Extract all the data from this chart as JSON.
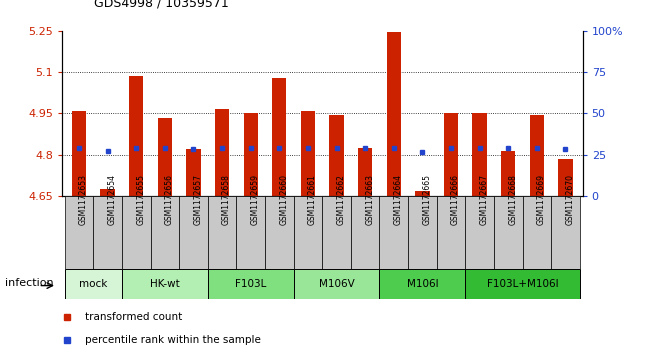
{
  "title": "GDS4998 / 10359571",
  "samples": [
    "GSM1172653",
    "GSM1172654",
    "GSM1172655",
    "GSM1172656",
    "GSM1172657",
    "GSM1172658",
    "GSM1172659",
    "GSM1172660",
    "GSM1172661",
    "GSM1172662",
    "GSM1172663",
    "GSM1172664",
    "GSM1172665",
    "GSM1172666",
    "GSM1172667",
    "GSM1172668",
    "GSM1172669",
    "GSM1172670"
  ],
  "red_values": [
    4.96,
    4.675,
    5.085,
    4.935,
    4.82,
    4.965,
    4.95,
    5.08,
    4.96,
    4.945,
    4.825,
    5.245,
    4.67,
    4.95,
    4.95,
    4.815,
    4.945,
    4.785
  ],
  "blue_values": [
    4.825,
    4.815,
    4.825,
    4.825,
    4.82,
    4.825,
    4.825,
    4.825,
    4.825,
    4.825,
    4.825,
    4.825,
    4.81,
    4.825,
    4.825,
    4.825,
    4.825,
    4.82
  ],
  "ylim_left": [
    4.65,
    5.25
  ],
  "ylim_right": [
    0,
    100
  ],
  "yticks_left": [
    4.65,
    4.8,
    4.95,
    5.1,
    5.25
  ],
  "ytick_labels_left": [
    "4.65",
    "4.8",
    "4.95",
    "5.1",
    "5.25"
  ],
  "yticks_right": [
    0,
    25,
    50,
    75,
    100
  ],
  "ytick_labels_right": [
    "0",
    "25",
    "50",
    "75",
    "100%"
  ],
  "groups": [
    {
      "label": "mock",
      "start": 0,
      "end": 2,
      "color": "#d6f5d6"
    },
    {
      "label": "HK-wt",
      "start": 2,
      "end": 5,
      "color": "#b3eeb3"
    },
    {
      "label": "F103L",
      "start": 5,
      "end": 8,
      "color": "#80e080"
    },
    {
      "label": "M106V",
      "start": 8,
      "end": 11,
      "color": "#99e699"
    },
    {
      "label": "M106I",
      "start": 11,
      "end": 14,
      "color": "#4dcc4d"
    },
    {
      "label": "F103L+M106I",
      "start": 14,
      "end": 18,
      "color": "#33bb33"
    }
  ],
  "bar_color": "#cc2200",
  "blue_color": "#2244cc",
  "base_value": 4.65,
  "infection_label": "infection",
  "legend1": "transformed count",
  "legend2": "percentile rank within the sample",
  "grid_dotted_at": [
    4.8,
    4.95,
    5.1
  ],
  "sample_label_bg": "#c8c8c8",
  "bar_width": 0.5
}
